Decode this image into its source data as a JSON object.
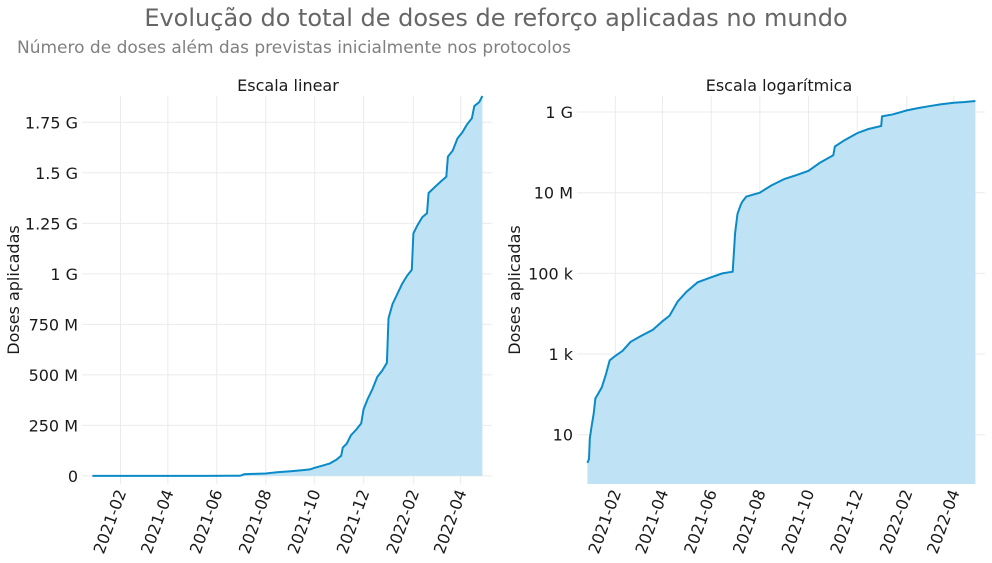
{
  "title": "Evolução do total de doses de reforço aplicadas no mundo",
  "subtitle": "Número de doses além das previstas inicialmente nos protocolos",
  "chart_data": [
    {
      "type": "area",
      "title": "Escala linear",
      "ylabel": "Doses aplicadas",
      "xlabel": "",
      "yscale": "linear",
      "x_ticks": [
        "2021-02",
        "2021-04",
        "2021-06",
        "2021-08",
        "2021-10",
        "2021-12",
        "2022-02",
        "2022-04"
      ],
      "y_ticks": [
        {
          "value": 0,
          "label": "0"
        },
        {
          "value": 250000000,
          "label": "250 M"
        },
        {
          "value": 500000000,
          "label": "500 M"
        },
        {
          "value": 750000000,
          "label": "750 M"
        },
        {
          "value": 1000000000,
          "label": "1 G"
        },
        {
          "value": 1250000000,
          "label": "1.25 G"
        },
        {
          "value": 1500000000,
          "label": "1.5 G"
        },
        {
          "value": 1750000000,
          "label": "1.75 G"
        }
      ],
      "ylim": [
        -40000000,
        1880000000
      ],
      "grid": true,
      "series": [
        {
          "color": "#0a8ac6",
          "fill": "#bfe3f5",
          "points": [
            [
              "2020-12-28",
              2
            ],
            [
              "2021-01-15",
              30
            ],
            [
              "2021-02-15",
              1000
            ],
            [
              "2021-03-15",
              5000
            ],
            [
              "2021-04-15",
              30000
            ],
            [
              "2021-05-15",
              200000
            ],
            [
              "2021-06-15",
              700000
            ],
            [
              "2021-06-29",
              1100000
            ],
            [
              "2021-07-01",
              2000000
            ],
            [
              "2021-07-05",
              8000000
            ],
            [
              "2021-07-15",
              10000000
            ],
            [
              "2021-08-01",
              12000000
            ],
            [
              "2021-08-15",
              18000000
            ],
            [
              "2021-09-01",
              23000000
            ],
            [
              "2021-09-15",
              28000000
            ],
            [
              "2021-09-25",
              32000000
            ],
            [
              "2021-10-01",
              40000000
            ],
            [
              "2021-10-10",
              50000000
            ],
            [
              "2021-10-20",
              62000000
            ],
            [
              "2021-10-28",
              80000000
            ],
            [
              "2021-11-03",
              100000000
            ],
            [
              "2021-11-05",
              140000000
            ],
            [
              "2021-11-10",
              160000000
            ],
            [
              "2021-11-15",
              200000000
            ],
            [
              "2021-11-22",
              230000000
            ],
            [
              "2021-11-28",
              260000000
            ],
            [
              "2021-12-01",
              330000000
            ],
            [
              "2021-12-06",
              380000000
            ],
            [
              "2021-12-12",
              430000000
            ],
            [
              "2021-12-18",
              490000000
            ],
            [
              "2021-12-24",
              520000000
            ],
            [
              "2021-12-30",
              560000000
            ],
            [
              "2022-01-01",
              780000000
            ],
            [
              "2022-01-06",
              850000000
            ],
            [
              "2022-01-12",
              900000000
            ],
            [
              "2022-01-18",
              950000000
            ],
            [
              "2022-01-24",
              990000000
            ],
            [
              "2022-01-30",
              1020000000
            ],
            [
              "2022-02-01",
              1200000000
            ],
            [
              "2022-02-06",
              1240000000
            ],
            [
              "2022-02-12",
              1280000000
            ],
            [
              "2022-02-18",
              1300000000
            ],
            [
              "2022-02-20",
              1400000000
            ],
            [
              "2022-02-28",
              1430000000
            ],
            [
              "2022-03-08",
              1460000000
            ],
            [
              "2022-03-14",
              1480000000
            ],
            [
              "2022-03-16",
              1580000000
            ],
            [
              "2022-03-22",
              1610000000
            ],
            [
              "2022-03-28",
              1670000000
            ],
            [
              "2022-04-03",
              1700000000
            ],
            [
              "2022-04-09",
              1740000000
            ],
            [
              "2022-04-15",
              1770000000
            ],
            [
              "2022-04-18",
              1830000000
            ],
            [
              "2022-04-24",
              1850000000
            ],
            [
              "2022-04-28",
              1880000000
            ]
          ]
        }
      ]
    },
    {
      "type": "area",
      "title": "Escala logarítmica",
      "ylabel": "Doses aplicadas",
      "xlabel": "",
      "yscale": "log",
      "x_ticks": [
        "2021-02",
        "2021-04",
        "2021-06",
        "2021-08",
        "2021-10",
        "2021-12",
        "2022-02",
        "2022-04"
      ],
      "y_ticks": [
        {
          "value": 10,
          "label": "10"
        },
        {
          "value": 1000,
          "label": "1 k"
        },
        {
          "value": 100000,
          "label": "100 k"
        },
        {
          "value": 10000000,
          "label": "10 M"
        },
        {
          "value": 1000000000,
          "label": "1 G"
        }
      ],
      "ylim": [
        0.6,
        2500000000
      ],
      "grid": true,
      "series": [
        {
          "color": "#0a8ac6",
          "fill": "#bfe3f5",
          "points": [
            [
              "2020-12-28",
              2
            ],
            [
              "2020-12-30",
              2.5
            ],
            [
              "2020-12-31",
              8
            ],
            [
              "2021-01-02",
              15
            ],
            [
              "2021-01-05",
              35
            ],
            [
              "2021-01-07",
              80
            ],
            [
              "2021-01-10",
              100
            ],
            [
              "2021-01-15",
              150
            ],
            [
              "2021-01-20",
              300
            ],
            [
              "2021-01-25",
              700
            ],
            [
              "2021-02-01",
              900
            ],
            [
              "2021-02-10",
              1200
            ],
            [
              "2021-02-20",
              2000
            ],
            [
              "2021-03-05",
              2800
            ],
            [
              "2021-03-20",
              4000
            ],
            [
              "2021-04-01",
              6500
            ],
            [
              "2021-04-10",
              9000
            ],
            [
              "2021-04-20",
              20000
            ],
            [
              "2021-05-01",
              35000
            ],
            [
              "2021-05-15",
              60000
            ],
            [
              "2021-06-01",
              80000
            ],
            [
              "2021-06-15",
              100000
            ],
            [
              "2021-06-28",
              110000
            ],
            [
              "2021-07-01",
              1000000
            ],
            [
              "2021-07-04",
              3000000
            ],
            [
              "2021-07-08",
              5000000
            ],
            [
              "2021-07-10",
              6000000
            ],
            [
              "2021-07-15",
              8000000
            ],
            [
              "2021-08-01",
              10000000
            ],
            [
              "2021-08-15",
              15000000
            ],
            [
              "2021-09-01",
              22000000
            ],
            [
              "2021-09-15",
              27000000
            ],
            [
              "2021-10-01",
              35000000
            ],
            [
              "2021-10-15",
              55000000
            ],
            [
              "2021-11-01",
              85000000
            ],
            [
              "2021-11-03",
              140000000
            ],
            [
              "2021-11-15",
              200000000
            ],
            [
              "2021-12-01",
              300000000
            ],
            [
              "2021-12-15",
              380000000
            ],
            [
              "2021-12-31",
              450000000
            ],
            [
              "2022-01-01",
              780000000
            ],
            [
              "2022-01-15",
              880000000
            ],
            [
              "2022-02-01",
              1100000000
            ],
            [
              "2022-02-15",
              1250000000
            ],
            [
              "2022-03-01",
              1400000000
            ],
            [
              "2022-03-15",
              1550000000
            ],
            [
              "2022-04-01",
              1700000000
            ],
            [
              "2022-04-15",
              1780000000
            ],
            [
              "2022-04-28",
              1880000000
            ]
          ]
        }
      ]
    }
  ]
}
